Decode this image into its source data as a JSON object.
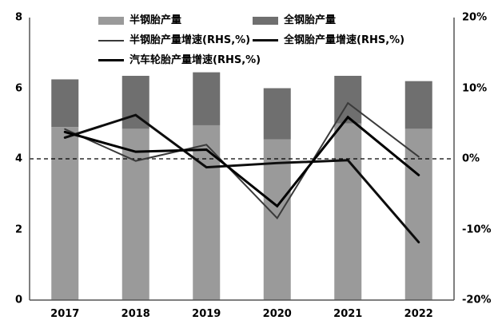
{
  "legend": {
    "items": [
      {
        "id": "semi-steel-production",
        "label": "半钢胎产量",
        "type": "bar",
        "color": "#9a9a9a"
      },
      {
        "id": "all-steel-production",
        "label": "全钢胎产量",
        "type": "bar",
        "color": "#6f6f6f"
      },
      {
        "id": "semi-steel-growth",
        "label": "半钢胎产量增速(RHS,%)",
        "type": "line",
        "color": "#3a3a3a",
        "width": 2
      },
      {
        "id": "all-steel-growth",
        "label": "全钢胎产量增速(RHS,%)",
        "type": "line",
        "color": "#0d0d0d",
        "width": 3
      },
      {
        "id": "auto-tire-growth",
        "label": "汽车轮胎产量增速(RHS,%)",
        "type": "line",
        "color": "#000000",
        "width": 3
      }
    ]
  },
  "chart_data": {
    "type": "bar",
    "subtype": "stacked-bars-with-lines-combo",
    "categories": [
      "2017",
      "2018",
      "2019",
      "2020",
      "2021",
      "2022"
    ],
    "bar_series": [
      {
        "id": "semi-steel-production",
        "name": "半钢胎产量",
        "axis": "left",
        "color": "#9a9a9a",
        "values": [
          4.9,
          4.85,
          4.95,
          4.55,
          5.0,
          4.85
        ]
      },
      {
        "id": "all-steel-production",
        "name": "全钢胎产量",
        "axis": "left",
        "color": "#6f6f6f",
        "values": [
          1.35,
          1.5,
          1.5,
          1.45,
          1.35,
          1.35
        ]
      }
    ],
    "line_series": [
      {
        "id": "semi-steel-growth",
        "name": "半钢胎产量增速(RHS,%)",
        "axis": "right",
        "color": "#3a3a3a",
        "width": 2,
        "values": [
          4.2,
          -0.3,
          2.0,
          -8.4,
          7.9,
          0.3
        ]
      },
      {
        "id": "all-steel-growth",
        "name": "全钢胎产量增速(RHS,%)",
        "axis": "right",
        "color": "#0d0d0d",
        "width": 3,
        "values": [
          3.0,
          6.2,
          -1.2,
          -0.6,
          -0.2,
          -11.8
        ]
      },
      {
        "id": "auto-tire-growth",
        "name": "汽车轮胎产量增速(RHS,%)",
        "axis": "right",
        "color": "#000000",
        "width": 3,
        "values": [
          3.8,
          1.0,
          1.3,
          -6.7,
          5.9,
          -2.3
        ]
      }
    ],
    "left_axis": {
      "min": 0,
      "max": 8,
      "tick_labels": [
        "8",
        "6",
        "4",
        "2",
        "0"
      ],
      "tick_values": [
        8,
        6,
        4,
        2,
        0
      ]
    },
    "right_axis": {
      "min": -20,
      "max": 20,
      "tick_labels": [
        "20%",
        "10%",
        "0%",
        "-10%",
        "-20%"
      ],
      "tick_values": [
        20,
        10,
        0,
        -10,
        -20
      ]
    },
    "zero_line": {
      "style": "dashed",
      "at_right_axis_value": 0
    },
    "grid": "off",
    "legend_position": "top"
  }
}
